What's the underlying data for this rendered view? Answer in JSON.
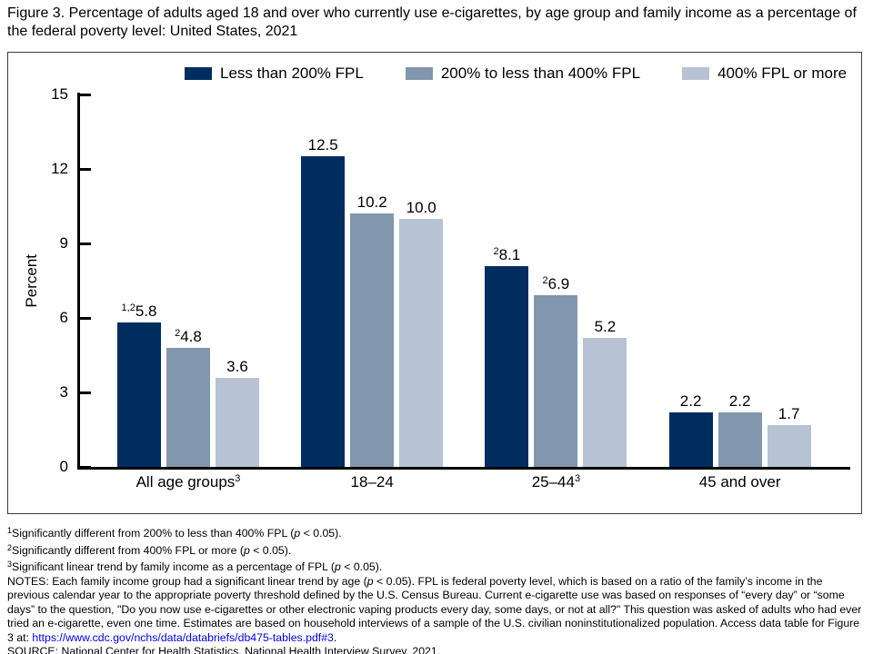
{
  "title": "Figure 3. Percentage of adults aged 18 and over who currently use e-cigarettes, by age group and family income as a percentage of the federal poverty level: United States, 2021",
  "chart_data": {
    "type": "bar",
    "title": "Percentage of adults aged 18 and over who currently use e-cigarettes, by age group and family income as a percentage of the federal poverty level: United States, 2021",
    "ylabel": "Percent",
    "xlabel": "",
    "ylim": [
      0,
      15
    ],
    "yticks": [
      0,
      3,
      6,
      9,
      12,
      15
    ],
    "grid": false,
    "legend_position": "top",
    "categories": [
      {
        "label": "All age groups",
        "sup": "3"
      },
      {
        "label": "18–24",
        "sup": ""
      },
      {
        "label": "25–44",
        "sup": "3"
      },
      {
        "label": "45 and over",
        "sup": ""
      }
    ],
    "series": [
      {
        "name": "Less than 200% FPL",
        "color": "#002d5f",
        "values": [
          5.8,
          12.5,
          8.1,
          2.2
        ],
        "labels": [
          {
            "sup": "1,2",
            "value": "5.8"
          },
          {
            "sup": "",
            "value": "12.5"
          },
          {
            "sup": "2",
            "value": "8.1"
          },
          {
            "sup": "",
            "value": "2.2"
          }
        ]
      },
      {
        "name": "200% to less than 400% FPL",
        "color": "#8296ae",
        "values": [
          4.8,
          10.2,
          6.9,
          2.2
        ],
        "labels": [
          {
            "sup": "2",
            "value": "4.8"
          },
          {
            "sup": "",
            "value": "10.2"
          },
          {
            "sup": "2",
            "value": "6.9"
          },
          {
            "sup": "",
            "value": "2.2"
          }
        ]
      },
      {
        "name": "400% FPL or more",
        "color": "#b7c3d3",
        "values": [
          3.6,
          10.0,
          5.2,
          1.7
        ],
        "labels": [
          {
            "sup": "",
            "value": "3.6"
          },
          {
            "sup": "",
            "value": "10.0"
          },
          {
            "sup": "",
            "value": "5.2"
          },
          {
            "sup": "",
            "value": "1.7"
          }
        ]
      }
    ]
  },
  "footnotes": [
    {
      "sup": "1",
      "pre": "Significantly different from 200% to less than 400% FPL (",
      "italic": "p",
      "post": " < 0.05)."
    },
    {
      "sup": "2",
      "pre": "Significantly different from 400% FPL or more (",
      "italic": "p",
      "post": " < 0.05)."
    },
    {
      "sup": "3",
      "pre": "Significant linear trend by family income as a percentage of FPL (",
      "italic": "p",
      "post": " < 0.05)."
    }
  ],
  "notes": {
    "pre": "NOTES: Each family income group had a significant linear trend by age (",
    "italic": "p",
    "mid": " < 0.05). FPL is federal poverty level, which is based on a ratio of the family’s income in the previous calendar year to the appropriate poverty threshold defined by the U.S. Census Bureau. Current e-cigarette use was based on responses of “every day” or “some days” to the question, \"Do you now use e-cigarettes or other electronic vaping products every day, some days, or not at all?\" This question was asked of adults who had ever tried an e-cigarette, even one time. Estimates are based on household interviews of a sample of the U.S. civilian noninstitutionalized population. Access data table for Figure 3 at: ",
    "link": "https://www.cdc.gov/nchs/data/databriefs/db475-tables.pdf#3",
    "post": "."
  },
  "source": "SOURCE: National Center for Health Statistics, National Health Interview Survey, 2021."
}
